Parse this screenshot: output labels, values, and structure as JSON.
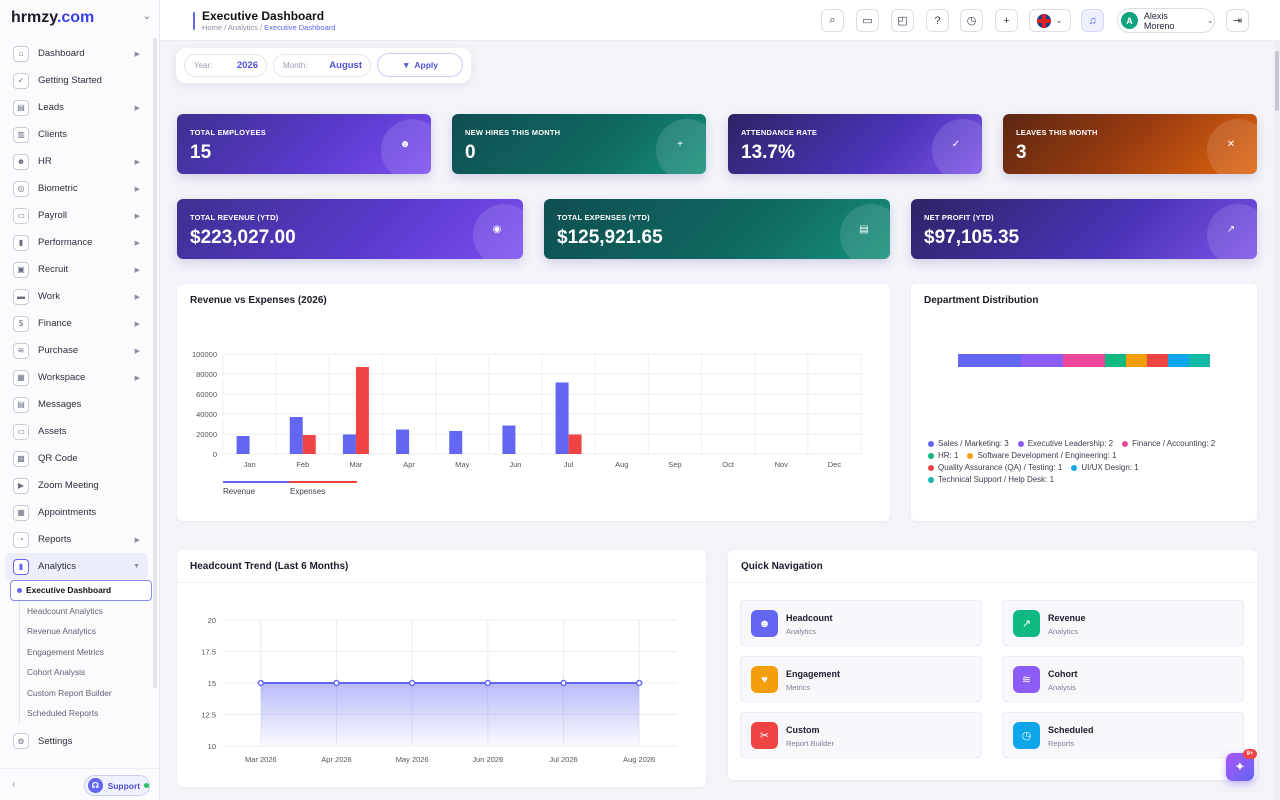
{
  "brand": {
    "name": "hrmzy",
    "tld": ".com"
  },
  "sidebar": {
    "items": [
      {
        "label": "Dashboard",
        "icon": "home-icon",
        "arrow": true
      },
      {
        "label": "Getting Started",
        "icon": "check-circle-icon",
        "arrow": false
      },
      {
        "label": "Leads",
        "icon": "id-card-icon",
        "arrow": true
      },
      {
        "label": "Clients",
        "icon": "building-icon",
        "arrow": false
      },
      {
        "label": "HR",
        "icon": "users-icon",
        "arrow": true
      },
      {
        "label": "Biometric",
        "icon": "fingerprint-icon",
        "arrow": true
      },
      {
        "label": "Payroll",
        "icon": "wallet-icon",
        "arrow": true
      },
      {
        "label": "Performance",
        "icon": "bar-chart-icon",
        "arrow": true
      },
      {
        "label": "Recruit",
        "icon": "recruit-icon",
        "arrow": true
      },
      {
        "label": "Work",
        "icon": "briefcase-icon",
        "arrow": true
      },
      {
        "label": "Finance",
        "icon": "dollar-icon",
        "arrow": true
      },
      {
        "label": "Purchase",
        "icon": "layers-icon",
        "arrow": true
      },
      {
        "label": "Workspace",
        "icon": "grid-icon",
        "arrow": true
      },
      {
        "label": "Messages",
        "icon": "message-icon",
        "arrow": false
      },
      {
        "label": "Assets",
        "icon": "monitor-icon",
        "arrow": false
      },
      {
        "label": "QR Code",
        "icon": "qr-code-icon",
        "arrow": false
      },
      {
        "label": "Zoom Meeting",
        "icon": "video-icon",
        "arrow": false
      },
      {
        "label": "Appointments",
        "icon": "calendar-icon",
        "arrow": false
      },
      {
        "label": "Reports",
        "icon": "pie-chart-icon",
        "arrow": true
      },
      {
        "label": "Analytics",
        "icon": "analytics-icon",
        "arrow": true,
        "expanded": true
      }
    ],
    "sub_items": [
      "Executive Dashboard",
      "Headcount Analytics",
      "Revenue Analytics",
      "Engagement Metrics",
      "Cohort Analysis",
      "Custom Report Builder",
      "Scheduled Reports"
    ],
    "settings": "Settings",
    "support": "Support"
  },
  "header": {
    "title": "Executive Dashboard",
    "breadcrumb": [
      "Home",
      "Analytics",
      "Executive Dashboard"
    ],
    "user_name": "Alexis Moreno",
    "user_initial": "A"
  },
  "filter": {
    "year_label": "Year:",
    "year": "2026",
    "month_label": "Month:",
    "month": "August",
    "apply": "Apply"
  },
  "stats": [
    {
      "label": "TOTAL EMPLOYEES",
      "value": "15",
      "icon": "users-icon"
    },
    {
      "label": "NEW HIRES THIS MONTH",
      "value": "0",
      "icon": "user-plus-icon"
    },
    {
      "label": "ATTENDANCE RATE",
      "value": "13.7%",
      "icon": "calendar-check-icon"
    },
    {
      "label": "LEAVES THIS MONTH",
      "value": "3",
      "icon": "calendar-x-icon"
    },
    {
      "label": "TOTAL REVENUE (YTD)",
      "value": "$223,027.00",
      "icon": "coins-icon"
    },
    {
      "label": "TOTAL EXPENSES (YTD)",
      "value": "$125,921.65",
      "icon": "receipt-icon"
    },
    {
      "label": "NET PROFIT (YTD)",
      "value": "$97,105.35",
      "icon": "trend-up-icon"
    }
  ],
  "revenue_chart": {
    "title": "Revenue vs Expenses (2026)",
    "legend_revenue": "Revenue",
    "legend_expenses": "Expenses",
    "colors": {
      "revenue": "#6366f1",
      "expenses": "#ef4444"
    }
  },
  "department": {
    "title": "Department Distribution",
    "items": [
      {
        "label": "Sales / Marketing: 3",
        "color": "#6366f1"
      },
      {
        "label": "Executive Leadership: 2",
        "color": "#8b5cf6"
      },
      {
        "label": "Finance / Accounting: 2",
        "color": "#ec4899"
      },
      {
        "label": "HR: 1",
        "color": "#10b981"
      },
      {
        "label": "Software Development / Engineering: 1",
        "color": "#f59e0b"
      },
      {
        "label": "Quality Assurance (QA) / Testing: 1",
        "color": "#ef4444"
      },
      {
        "label": "UI/UX Design: 1",
        "color": "#0ea5e9"
      },
      {
        "label": "Technical Support / Help Desk: 1",
        "color": "#14b8a6"
      }
    ]
  },
  "headcount": {
    "title": "Headcount Trend (Last 6 Months)"
  },
  "quick_nav": {
    "title": "Quick Navigation",
    "items": [
      {
        "title": "Headcount",
        "sub": "Analytics",
        "color": "#6366f1",
        "icon": "users-icon"
      },
      {
        "title": "Revenue",
        "sub": "Analytics",
        "color": "#10b981",
        "icon": "trend-up-icon"
      },
      {
        "title": "Engagement",
        "sub": "Metrics",
        "color": "#f59e0b",
        "icon": "heart-icon"
      },
      {
        "title": "Cohort",
        "sub": "Analysis",
        "color": "#8b5cf6",
        "icon": "layers-icon"
      },
      {
        "title": "Custom",
        "sub": "Report Builder",
        "color": "#ef4444",
        "icon": "tools-icon"
      },
      {
        "title": "Scheduled",
        "sub": "Reports",
        "color": "#0ea5e9",
        "icon": "clock-icon"
      }
    ]
  },
  "fab_badge": "9+",
  "chart_data": [
    {
      "type": "bar",
      "title": "Revenue vs Expenses (2026)",
      "categories": [
        "Jan",
        "Feb",
        "Mar",
        "Apr",
        "May",
        "Jun",
        "Jul",
        "Aug",
        "Sep",
        "Oct",
        "Nov",
        "Dec"
      ],
      "series": [
        {
          "name": "Revenue",
          "color": "#6366f1",
          "values": [
            18000,
            37000,
            19500,
            24500,
            23000,
            28500,
            71500,
            0,
            0,
            0,
            0,
            0
          ]
        },
        {
          "name": "Expenses",
          "color": "#ef4444",
          "values": [
            0,
            19000,
            87000,
            0,
            0,
            0,
            19500,
            0,
            0,
            0,
            0,
            0
          ]
        }
      ],
      "y_ticks": [
        "0",
        "20000",
        "40000",
        "60000",
        "80000",
        "100000"
      ],
      "ylim": [
        0,
        100000
      ],
      "legend": "bottom-left"
    },
    {
      "type": "bar",
      "title": "Department Distribution",
      "categories": [
        "Sales / Marketing",
        "Executive Leadership",
        "Finance / Accounting",
        "HR",
        "Software Development / Engineering",
        "Quality Assurance (QA) / Testing",
        "UI/UX Design",
        "Technical Support / Help Desk"
      ],
      "values": [
        3,
        2,
        2,
        1,
        1,
        1,
        1,
        1
      ],
      "stacked": true
    },
    {
      "type": "area",
      "title": "Headcount Trend (Last 6 Months)",
      "x": [
        "Mar 2026",
        "Apr 2026",
        "May 2026",
        "Jun 2026",
        "Jul 2026",
        "Aug 2026"
      ],
      "values": [
        15,
        15,
        15,
        15,
        15,
        15
      ],
      "y_ticks": [
        "10",
        "12.5",
        "15",
        "17.5",
        "20"
      ],
      "ylim": [
        10,
        20
      ],
      "color": "#6366f1"
    }
  ]
}
